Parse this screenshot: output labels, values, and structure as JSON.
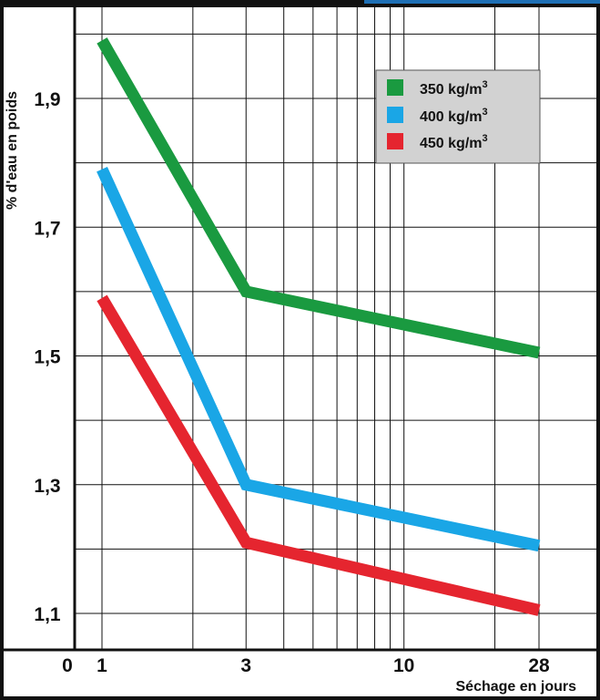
{
  "colors": {
    "background": "#ffffff",
    "grid": "#111111",
    "legend_bg": "#d2d2d2",
    "top_bar_black": "#111111",
    "top_bar_blue": "#1e6fb5"
  },
  "chart_data": {
    "type": "line",
    "xscale": "log",
    "xlabel": "Séchage en jours",
    "ylabel": "% d'eau en poids",
    "x_ticks": [
      "0",
      "1",
      "3",
      "10",
      "28"
    ],
    "y_ticks": [
      "1,1",
      "1,3",
      "1,5",
      "1,7",
      "1,9"
    ],
    "ylim": [
      1.05,
      2.0
    ],
    "grid": true,
    "legend_position": "top-right",
    "series": [
      {
        "name": "350 kg/m",
        "unit_sup": "3",
        "color": "#1a9a40",
        "x": [
          1,
          3,
          28
        ],
        "y": [
          1.99,
          1.6,
          1.505
        ]
      },
      {
        "name": "400 kg/m",
        "unit_sup": "3",
        "color": "#1aa6e6",
        "x": [
          1,
          3,
          28
        ],
        "y": [
          1.79,
          1.3,
          1.205
        ]
      },
      {
        "name": "450 kg/m",
        "unit_sup": "3",
        "color": "#e5252f",
        "x": [
          1,
          3,
          28
        ],
        "y": [
          1.59,
          1.21,
          1.105
        ]
      }
    ]
  }
}
